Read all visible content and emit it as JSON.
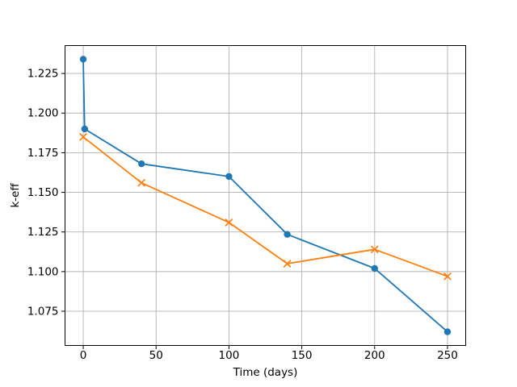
{
  "figure": {
    "background": "#ffffff"
  },
  "chart_data": {
    "type": "line",
    "title": "",
    "xlabel": "Time (days)",
    "ylabel": "k-eff",
    "xlim": [
      -12.5,
      262.5
    ],
    "ylim": [
      1.0534,
      1.2426
    ],
    "grid": true,
    "legend": "none",
    "colors": {
      "grid": "#b0b0b0",
      "spine": "#000000",
      "tick": "#000000"
    },
    "xticks": {
      "values": [
        0,
        50,
        100,
        150,
        200,
        250
      ],
      "labels": [
        "0",
        "50",
        "100",
        "150",
        "200",
        "250"
      ]
    },
    "yticks": {
      "values": [
        1.075,
        1.1,
        1.125,
        1.15,
        1.175,
        1.2,
        1.225
      ],
      "labels": [
        "1.075",
        "1.100",
        "1.125",
        "1.150",
        "1.175",
        "1.200",
        "1.225"
      ]
    },
    "series": [
      {
        "name": "keff-circle-series",
        "color": "#1f77b4",
        "marker": "circle",
        "x": [
          0,
          1,
          40,
          100,
          140,
          200,
          250
        ],
        "y": [
          1.234,
          1.19,
          1.168,
          1.16,
          1.1235,
          1.102,
          1.062
        ]
      },
      {
        "name": "keff-x-series",
        "color": "#ff7f0e",
        "marker": "x",
        "x": [
          0,
          40,
          100,
          140,
          200,
          250
        ],
        "y": [
          1.185,
          1.156,
          1.131,
          1.105,
          1.114,
          1.097
        ]
      }
    ]
  }
}
